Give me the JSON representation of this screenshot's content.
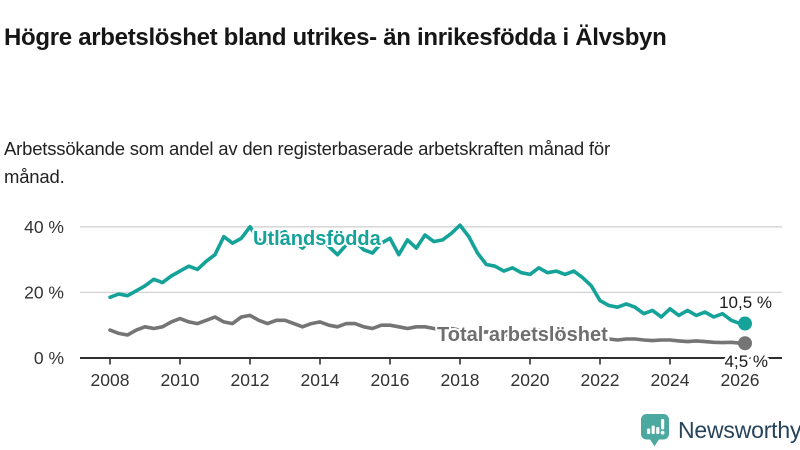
{
  "header": {
    "title": "Högre arbetslöshet bland utrikes- än inrikesfödda i Älvsbyn",
    "subtitle": "Arbetssökande som andel av den registerbaserade arbetskraften månad för månad."
  },
  "chart_data": {
    "type": "line",
    "title": "",
    "xlabel": "",
    "ylabel": "",
    "x_start": 2008,
    "x_step": 0.25,
    "x_end": 2026,
    "ylim": [
      0,
      42
    ],
    "grid": "horizontal",
    "legend_position": "inline-labels",
    "yticks": [
      {
        "value": 0,
        "label": "0 %"
      },
      {
        "value": 20,
        "label": "20 %"
      },
      {
        "value": 40,
        "label": "40 %"
      }
    ],
    "xticks": [
      {
        "value": 2008,
        "label": "2008"
      },
      {
        "value": 2010,
        "label": "2010"
      },
      {
        "value": 2012,
        "label": "2012"
      },
      {
        "value": 2014,
        "label": "2014"
      },
      {
        "value": 2016,
        "label": "2016"
      },
      {
        "value": 2018,
        "label": "2018"
      },
      {
        "value": 2020,
        "label": "2020"
      },
      {
        "value": 2022,
        "label": "2022"
      },
      {
        "value": 2024,
        "label": "2024"
      },
      {
        "value": 2026,
        "label": "2026"
      }
    ],
    "series": [
      {
        "name": "Utlandsfödda",
        "color": "#14a299",
        "end_label": "10,5 %",
        "end_value": 10.5,
        "values": [
          18.5,
          19.5,
          19,
          20.5,
          22,
          24,
          23,
          25,
          26.5,
          28,
          27,
          29.5,
          31.5,
          37,
          35,
          36.5,
          40,
          36,
          35,
          37.5,
          38.5,
          35.5,
          33.5,
          36,
          36.5,
          34,
          31.5,
          34.5,
          35.5,
          33,
          32,
          35,
          36.5,
          31.5,
          36,
          33.5,
          37.5,
          35.5,
          36,
          38,
          40.5,
          37,
          32,
          28.5,
          28,
          26.5,
          27.5,
          26,
          25.5,
          27.5,
          26,
          26.5,
          25.5,
          26.5,
          24.5,
          22,
          17.5,
          16,
          15.5,
          16.5,
          15.5,
          13.5,
          14.5,
          12.5,
          15,
          13,
          14.5,
          13,
          14,
          12.5,
          13.5,
          11.5,
          10.5
        ]
      },
      {
        "name": "Total arbetslöshet",
        "color": "#757575",
        "label_color": "#6f6f6f",
        "end_label": "4,5 %",
        "end_value": 4.5,
        "values": [
          8.5,
          7.5,
          7,
          8.5,
          9.5,
          9,
          9.5,
          11,
          12,
          11,
          10.5,
          11.5,
          12.5,
          11,
          10.5,
          12.5,
          13,
          11.5,
          10.5,
          11.5,
          11.5,
          10.5,
          9.5,
          10.5,
          11,
          10,
          9.5,
          10.5,
          10.5,
          9.5,
          9,
          10,
          10,
          9.5,
          9,
          9.5,
          9.5,
          9,
          8.5,
          9,
          8.5,
          8,
          7.5,
          8,
          7.5,
          7,
          7,
          7.5,
          8,
          8.5,
          8,
          7.5,
          7,
          6.5,
          6,
          6,
          6,
          5.8,
          5.5,
          5.8,
          5.8,
          5.5,
          5.3,
          5.5,
          5.5,
          5.2,
          5,
          5.2,
          5,
          4.8,
          4.7,
          4.8,
          4.5
        ]
      }
    ],
    "colors": {
      "grid": "#d2d2d2",
      "axis": "#2f2f2f",
      "tick_label": "#333333",
      "end_label": "#1a1a1a"
    }
  },
  "footer": {
    "brand": "Newsworthy",
    "logo_icon": "newsworthy-bubble-chart-icon",
    "brand_icon_color": "#4ba9a0",
    "brand_text_color": "#26435c"
  }
}
